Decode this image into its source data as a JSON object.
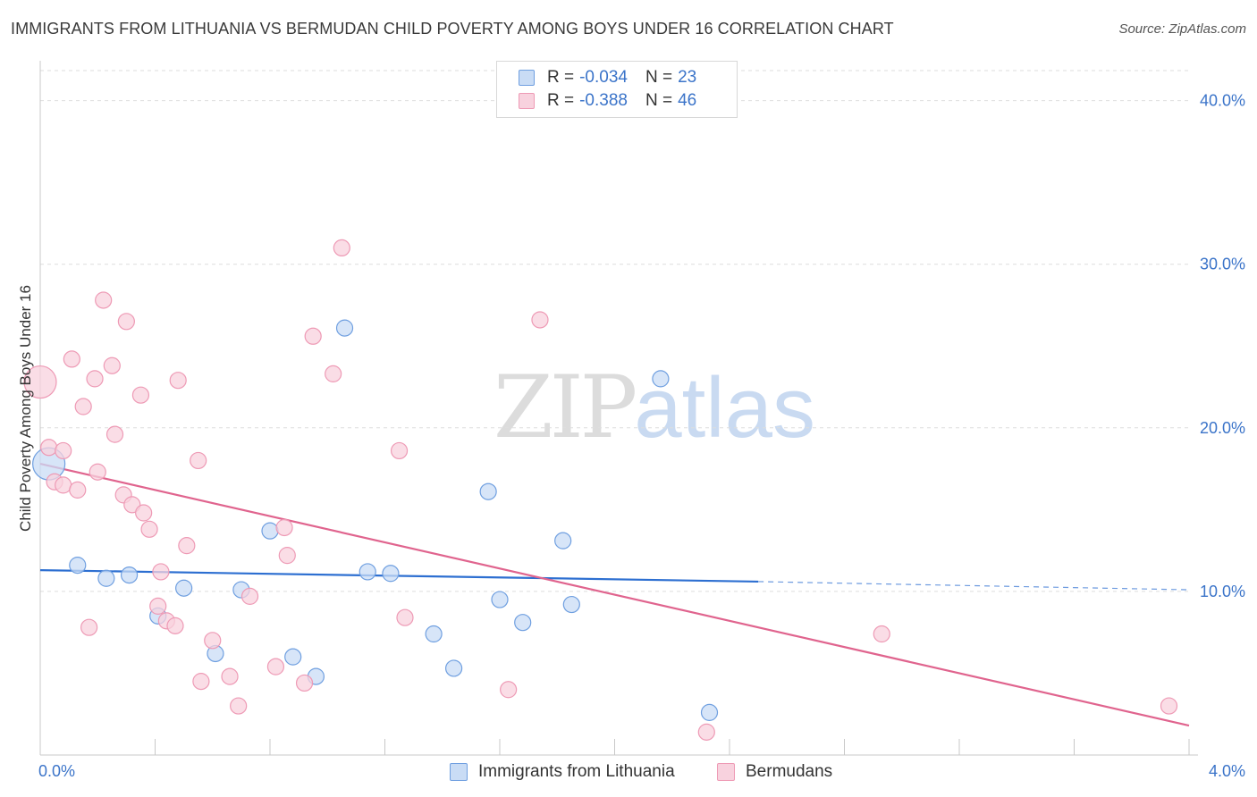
{
  "title": "IMMIGRANTS FROM LITHUANIA VS BERMUDAN CHILD POVERTY AMONG BOYS UNDER 16 CORRELATION CHART",
  "source": "Source: ZipAtlas.com",
  "watermark": {
    "zip": "ZIP",
    "atlas": "atlas"
  },
  "legend": {
    "r_label": "R =",
    "n_label": "N =",
    "rows": [
      {
        "r": "-0.034",
        "n": "23"
      },
      {
        "r": "-0.388",
        "n": "46"
      }
    ]
  },
  "chart_data": {
    "type": "scatter",
    "title": "IMMIGRANTS FROM LITHUANIA VS BERMUDAN CHILD POVERTY AMONG BOYS UNDER 16 CORRELATION CHART",
    "xlabel": "",
    "ylabel": "Child Poverty Among Boys Under 16",
    "xlim": [
      0,
      4
    ],
    "ylim": [
      0,
      42
    ],
    "x_tick_labels": [
      "0.0%",
      "4.0%"
    ],
    "y_ticks": [
      10,
      20,
      30,
      40
    ],
    "y_tick_labels": [
      "10.0%",
      "20.0%",
      "30.0%",
      "40.0%"
    ],
    "grid": true,
    "legend_position": "top-center",
    "series": [
      {
        "name": "Immigrants from Lithuania",
        "color": "#6f9fe0",
        "fill": "#c9dcf5",
        "line_color": "#2d6fd1",
        "trend": {
          "x": [
            0.0,
            2.5
          ],
          "y": [
            11.3,
            10.6
          ],
          "dashed_to": [
            4.0,
            10.1
          ]
        },
        "points": [
          {
            "x": 0.03,
            "y": 17.8,
            "size": "large"
          },
          {
            "x": 0.13,
            "y": 11.6
          },
          {
            "x": 0.23,
            "y": 10.8
          },
          {
            "x": 0.31,
            "y": 11.0
          },
          {
            "x": 0.41,
            "y": 8.5
          },
          {
            "x": 0.5,
            "y": 10.2
          },
          {
            "x": 0.61,
            "y": 6.2
          },
          {
            "x": 0.7,
            "y": 10.1
          },
          {
            "x": 0.8,
            "y": 13.7
          },
          {
            "x": 0.88,
            "y": 6.0
          },
          {
            "x": 0.96,
            "y": 4.8
          },
          {
            "x": 1.06,
            "y": 26.1
          },
          {
            "x": 1.14,
            "y": 11.2
          },
          {
            "x": 1.22,
            "y": 11.1
          },
          {
            "x": 1.37,
            "y": 7.4
          },
          {
            "x": 1.44,
            "y": 5.3
          },
          {
            "x": 1.56,
            "y": 16.1
          },
          {
            "x": 1.6,
            "y": 9.5
          },
          {
            "x": 1.68,
            "y": 8.1
          },
          {
            "x": 1.82,
            "y": 13.1
          },
          {
            "x": 1.85,
            "y": 9.2
          },
          {
            "x": 2.16,
            "y": 23.0
          },
          {
            "x": 2.33,
            "y": 2.6
          }
        ]
      },
      {
        "name": "Bermudans",
        "color": "#ee9ab5",
        "fill": "#f8d2de",
        "line_color": "#e0648e",
        "trend": {
          "x": [
            0.0,
            4.0
          ],
          "y": [
            17.8,
            1.8
          ]
        },
        "points": [
          {
            "x": 0.0,
            "y": 22.8,
            "size": "large"
          },
          {
            "x": 0.03,
            "y": 18.8
          },
          {
            "x": 0.05,
            "y": 16.7
          },
          {
            "x": 0.08,
            "y": 16.5
          },
          {
            "x": 0.08,
            "y": 18.6
          },
          {
            "x": 0.11,
            "y": 24.2
          },
          {
            "x": 0.13,
            "y": 16.2
          },
          {
            "x": 0.15,
            "y": 21.3
          },
          {
            "x": 0.17,
            "y": 7.8
          },
          {
            "x": 0.19,
            "y": 23.0
          },
          {
            "x": 0.2,
            "y": 17.3
          },
          {
            "x": 0.22,
            "y": 27.8
          },
          {
            "x": 0.25,
            "y": 23.8
          },
          {
            "x": 0.26,
            "y": 19.6
          },
          {
            "x": 0.29,
            "y": 15.9
          },
          {
            "x": 0.3,
            "y": 26.5
          },
          {
            "x": 0.32,
            "y": 15.3
          },
          {
            "x": 0.35,
            "y": 22.0
          },
          {
            "x": 0.36,
            "y": 14.8
          },
          {
            "x": 0.38,
            "y": 13.8
          },
          {
            "x": 0.41,
            "y": 9.1
          },
          {
            "x": 0.42,
            "y": 11.2
          },
          {
            "x": 0.44,
            "y": 8.2
          },
          {
            "x": 0.47,
            "y": 7.9
          },
          {
            "x": 0.48,
            "y": 22.9
          },
          {
            "x": 0.51,
            "y": 12.8
          },
          {
            "x": 0.55,
            "y": 18.0
          },
          {
            "x": 0.56,
            "y": 4.5
          },
          {
            "x": 0.6,
            "y": 7.0
          },
          {
            "x": 0.66,
            "y": 4.8
          },
          {
            "x": 0.69,
            "y": 3.0
          },
          {
            "x": 0.73,
            "y": 9.7
          },
          {
            "x": 0.82,
            "y": 5.4
          },
          {
            "x": 0.85,
            "y": 13.9
          },
          {
            "x": 0.86,
            "y": 12.2
          },
          {
            "x": 0.92,
            "y": 4.4
          },
          {
            "x": 0.95,
            "y": 25.6
          },
          {
            "x": 1.02,
            "y": 23.3
          },
          {
            "x": 1.05,
            "y": 31.0
          },
          {
            "x": 1.25,
            "y": 18.6
          },
          {
            "x": 1.27,
            "y": 8.4
          },
          {
            "x": 1.63,
            "y": 4.0
          },
          {
            "x": 1.74,
            "y": 26.6
          },
          {
            "x": 2.32,
            "y": 1.4
          },
          {
            "x": 2.93,
            "y": 7.4
          },
          {
            "x": 3.93,
            "y": 3.0
          }
        ]
      }
    ]
  }
}
